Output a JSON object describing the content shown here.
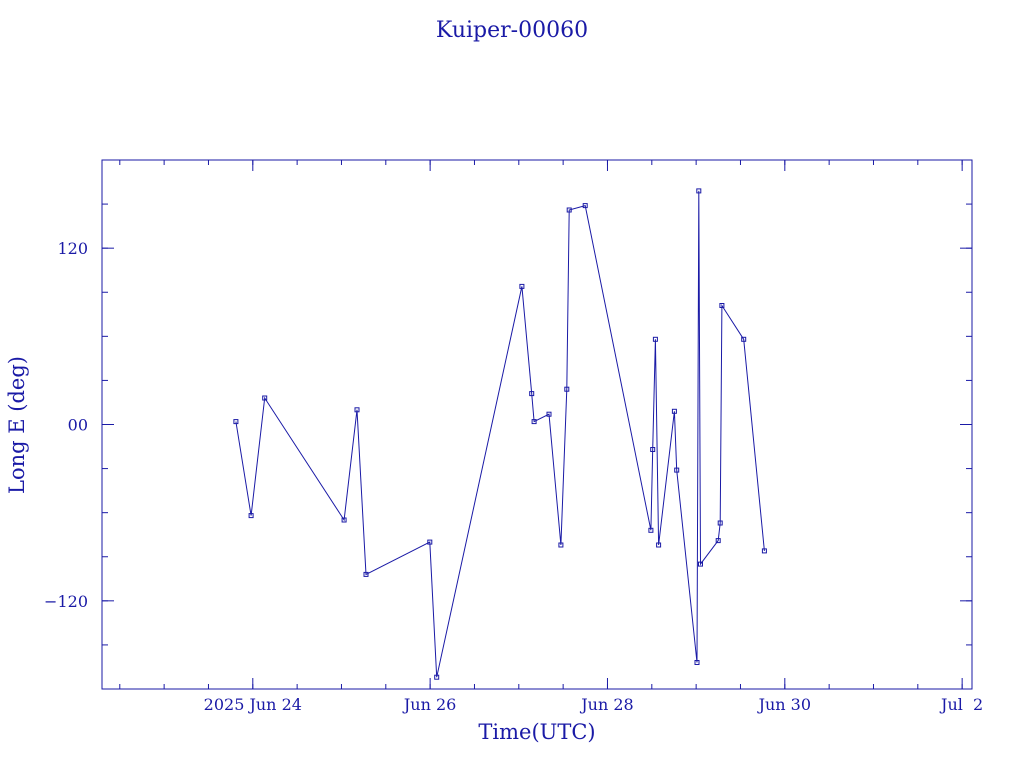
{
  "chart_data": {
    "type": "line",
    "title": "Kuiper-00060",
    "xlabel": "Time(UTC)",
    "ylabel": "Long E (deg)",
    "color": "#1a1aa6",
    "x_is_date": true,
    "xlim": [
      "2025-06-22T07:11",
      "2025-07-02T02:40"
    ],
    "ylim": [
      -180,
      180
    ],
    "y_tick_values": [
      -120,
      0,
      120
    ],
    "y_tick_labels": [
      "−120",
      "00",
      "120"
    ],
    "x_tick_values": [
      "2025-06-24T00:00",
      "2025-06-26T00:00",
      "2025-06-28T00:00",
      "2025-06-30T00:00",
      "2025-07-02T00:00"
    ],
    "x_tick_labels": [
      "2025 Jun 24",
      "Jun 26",
      "Jun 28",
      "Jun 30",
      "Jul  2"
    ],
    "series": [
      {
        "x": [
          "2025-06-23T19:25",
          "2025-06-23T23:33",
          "2025-06-24T03:14",
          "2025-06-25T00:42",
          "2025-06-25T04:13",
          "2025-06-25T06:39",
          "2025-06-25T23:55",
          "2025-06-26T01:47",
          "2025-06-27T00:51",
          "2025-06-27T03:30",
          "2025-06-27T04:08",
          "2025-06-27T08:11",
          "2025-06-27T11:24",
          "2025-06-27T13:00",
          "2025-06-27T13:39",
          "2025-06-27T17:58",
          "2025-06-28T11:46",
          "2025-06-28T12:14",
          "2025-06-28T12:59",
          "2025-06-28T13:51",
          "2025-06-28T18:07",
          "2025-06-28T18:45",
          "2025-06-29T00:14",
          "2025-06-29T00:43",
          "2025-06-29T01:11",
          "2025-06-29T05:58",
          "2025-06-29T06:30",
          "2025-06-29T06:59",
          "2025-06-29T12:53",
          "2025-06-29T18:29"
        ],
        "y": [
          2,
          -62,
          18,
          -65,
          10,
          -102,
          -80,
          -172,
          94,
          21,
          2,
          7,
          -82,
          24,
          146,
          149,
          -72,
          -17,
          58,
          -82,
          9,
          -31,
          -162,
          159,
          -95,
          -79,
          -67,
          81,
          58,
          -86
        ]
      }
    ]
  }
}
